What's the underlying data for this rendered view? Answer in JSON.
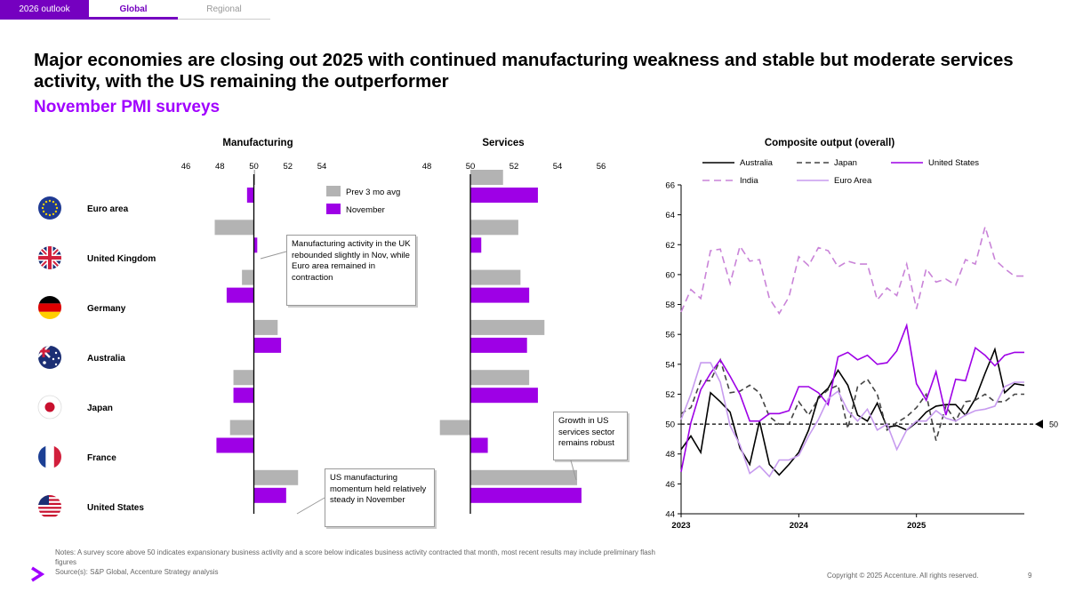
{
  "tabs": {
    "first": "2026 outlook",
    "global": "Global",
    "regional": "Regional"
  },
  "title": "Major economies are closing out 2025 with continued manufacturing weakness and stable but moderate services activity, with the US remaining the outperformer",
  "subtitle": "November PMI surveys",
  "colors": {
    "accent": "#a100ff",
    "november": "#9e00e6",
    "prev": "#b3b3b3",
    "india": "#c983d8",
    "euro": "#c79bef"
  },
  "chart_data": [
    {
      "type": "bar",
      "title": "Manufacturing",
      "categories": [
        "Euro area",
        "United Kingdom",
        "Germany",
        "Australia",
        "Japan",
        "France",
        "United States"
      ],
      "xlim": [
        46,
        54
      ],
      "ticks": [
        46,
        48,
        50,
        52,
        54
      ],
      "baseline": 50,
      "series": [
        {
          "name": "Prev 3 mo avg",
          "values": [
            50.0,
            47.7,
            49.3,
            51.4,
            48.8,
            48.6,
            52.6
          ]
        },
        {
          "name": "November",
          "values": [
            49.6,
            50.2,
            48.4,
            51.6,
            48.8,
            47.8,
            51.9
          ]
        }
      ]
    },
    {
      "type": "bar",
      "title": "Services",
      "categories": [
        "Euro area",
        "United Kingdom",
        "Germany",
        "Australia",
        "Japan",
        "France",
        "United States"
      ],
      "xlim": [
        48,
        56
      ],
      "ticks": [
        48,
        50,
        52,
        54,
        56
      ],
      "baseline": 50,
      "series": [
        {
          "name": "Prev 3 mo avg",
          "values": [
            51.5,
            52.2,
            52.3,
            53.4,
            52.7,
            48.6,
            54.9
          ]
        },
        {
          "name": "November",
          "values": [
            53.1,
            50.5,
            52.7,
            52.6,
            53.1,
            50.8,
            55.1
          ]
        }
      ]
    },
    {
      "type": "line",
      "title": "Composite output (overall)",
      "ylim": [
        44,
        66
      ],
      "yticks": [
        44,
        46,
        48,
        50,
        52,
        54,
        56,
        58,
        60,
        62,
        64,
        66
      ],
      "x_start": "2023-01",
      "x_ticks": [
        "2023",
        "2024",
        "2025"
      ],
      "reference_line": {
        "value": 50,
        "label": "50"
      },
      "series": [
        {
          "name": "Australia",
          "values": [
            48.3,
            49.2,
            48.1,
            52.1,
            51.5,
            50.8,
            48.4,
            47.3,
            50.2,
            47.3,
            46.6,
            47.3,
            48.1,
            49.6,
            51.8,
            52.4,
            53.6,
            52.6,
            50.6,
            50.2,
            51.4,
            49.8,
            49.9,
            49.6,
            50.1,
            50.8,
            51.2,
            51.3,
            51.3,
            50.6,
            51.7,
            53.4,
            55.0,
            52.1,
            52.7,
            52.6
          ]
        },
        {
          "name": "Japan",
          "values": [
            50.7,
            51.1,
            52.9,
            52.9,
            54.3,
            52.1,
            52.2,
            52.6,
            52.1,
            50.5,
            50.0,
            50.0,
            51.5,
            50.6,
            51.7,
            52.3,
            52.6,
            49.7,
            52.5,
            53.0,
            52.0,
            49.6,
            50.1,
            50.5,
            51.1,
            52.0,
            48.9,
            51.2,
            50.2,
            51.5,
            51.6,
            52.0,
            51.5,
            51.5,
            52.0,
            52.0
          ]
        },
        {
          "name": "United States",
          "values": [
            46.8,
            50.1,
            52.3,
            53.4,
            54.3,
            53.2,
            52.0,
            50.2,
            50.2,
            50.7,
            50.7,
            50.9,
            52.5,
            52.5,
            52.1,
            51.3,
            54.5,
            54.8,
            54.3,
            54.6,
            54.0,
            54.1,
            54.9,
            56.6,
            52.7,
            51.6,
            53.5,
            50.6,
            53.0,
            52.9,
            55.1,
            54.6,
            53.9,
            54.6,
            54.8,
            54.8
          ]
        },
        {
          "name": "India",
          "values": [
            57.5,
            59.0,
            58.4,
            61.6,
            61.7,
            59.4,
            61.9,
            60.9,
            61.0,
            58.4,
            57.4,
            58.5,
            61.2,
            60.6,
            61.8,
            61.6,
            60.5,
            60.9,
            60.7,
            60.7,
            58.3,
            59.1,
            58.6,
            60.7,
            57.7,
            60.4,
            59.5,
            59.7,
            59.3,
            61.0,
            60.7,
            63.2,
            61.0,
            60.4,
            59.9,
            59.9
          ]
        },
        {
          "name": "Euro Area",
          "values": [
            50.3,
            52.0,
            54.1,
            54.1,
            52.8,
            49.9,
            48.6,
            46.7,
            47.2,
            46.5,
            47.6,
            47.6,
            47.9,
            49.2,
            50.3,
            51.7,
            52.2,
            50.9,
            50.2,
            51.0,
            49.6,
            50.0,
            48.3,
            49.6,
            50.2,
            50.2,
            50.9,
            50.4,
            50.2,
            50.6,
            50.9,
            51.0,
            51.2,
            52.5,
            52.8,
            52.8
          ]
        }
      ]
    }
  ],
  "legend": {
    "manufacturing_prev": "Prev 3 mo avg",
    "manufacturing_nov": "November"
  },
  "callouts": {
    "uk": "Manufacturing activity in the UK rebounded slightly in Nov, while Euro area remained in contraction",
    "us_mfg": "US manufacturing momentum held relatively steady in November",
    "us_services": "Growth in US services sector remains robust"
  },
  "footer": {
    "notes": "Notes: A survey score above 50 indicates expansionary business activity and a score below indicates business activity contracted that month, most recent results may include preliminary flash figures",
    "source": "Source(s): S&P Global, Accenture Strategy analysis",
    "copyright": "Copyright © 2025 Accenture. All rights reserved.",
    "page": "9"
  },
  "flag_icons": [
    "eu-flag-icon",
    "uk-flag-icon",
    "germany-flag-icon",
    "australia-flag-icon",
    "japan-flag-icon",
    "france-flag-icon",
    "us-flag-icon"
  ]
}
